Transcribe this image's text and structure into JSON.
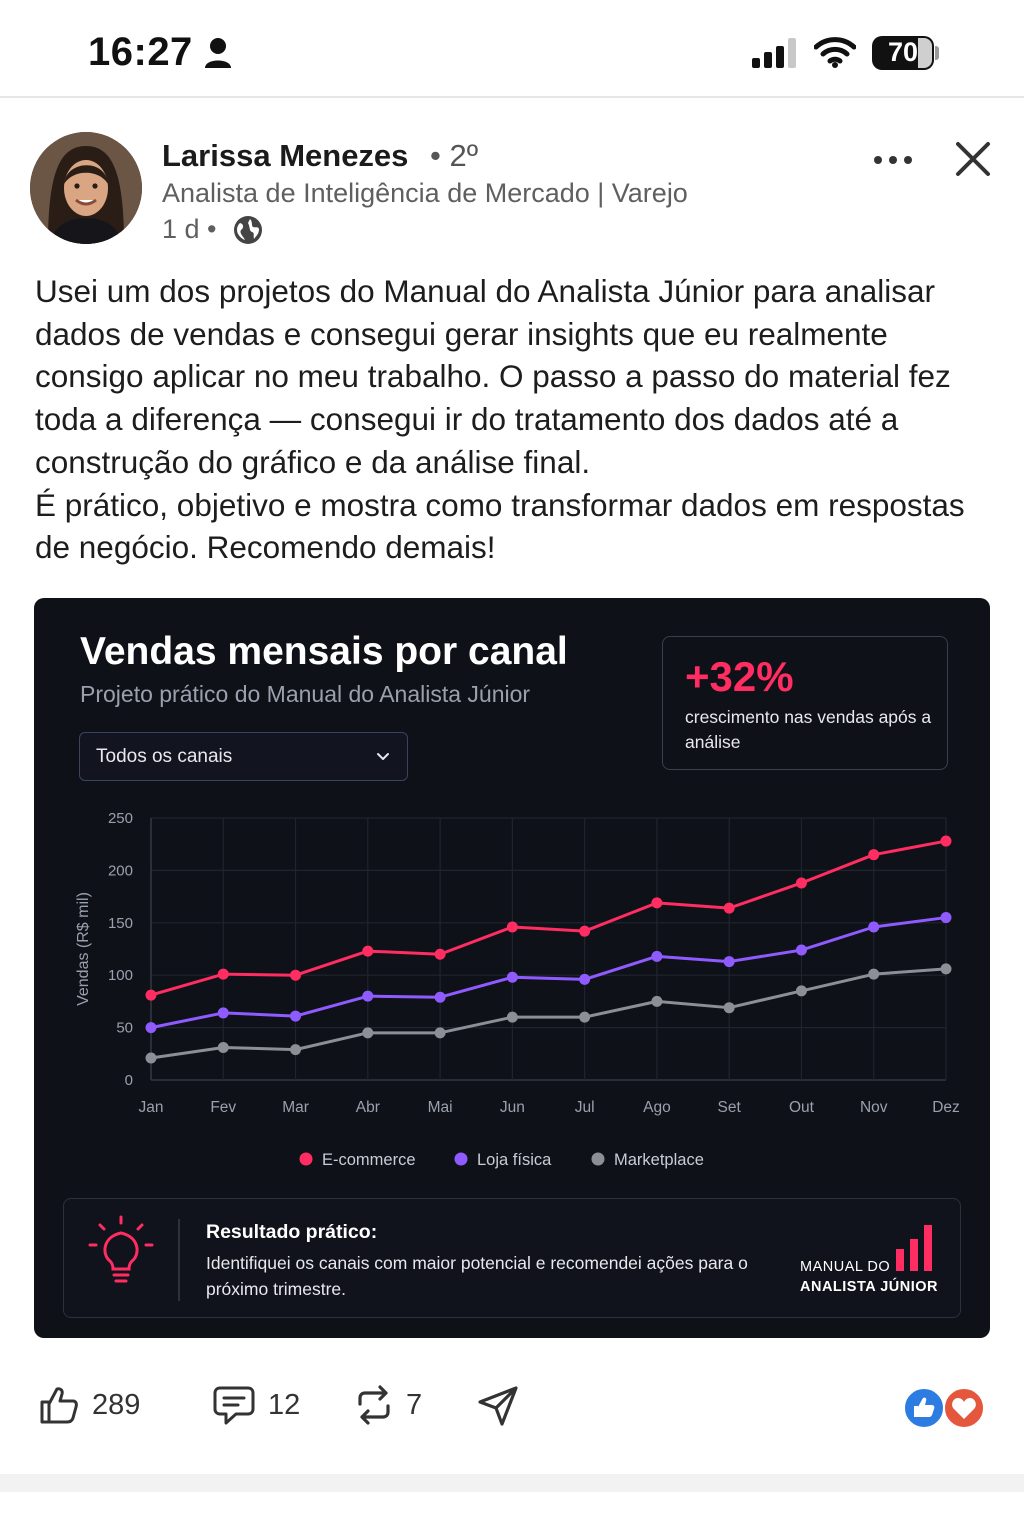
{
  "status_bar": {
    "time": "16:27",
    "battery": "70"
  },
  "post": {
    "author_name": "Larissa Menezes",
    "degree": "• 2º",
    "headline": "Analista de Inteligência de Mercado | Varejo",
    "time": "1 d •",
    "text": "Usei um dos projetos do Manual do Analista Júnior para analisar dados de vendas e consegui gerar insights que eu realmente consigo aplicar no meu trabalho. O passo a passo do material fez toda a diferença — consegui ir do tratamento dos dados até a construção do gráfico e da análise final.\nÉ prático, objetivo e mostra como transformar dados em respostas de negócio. Recomendo demais!"
  },
  "card": {
    "title": "Vendas mensais por canal",
    "subtitle": "Projeto prático do Manual do Analista Júnior",
    "select_value": "Todos os canais",
    "kpi_value": "+32%",
    "kpi_description": "crescimento nas vendas após a análise",
    "result_title": "Resultado prático:",
    "result_text": "Identifiquei os canais com maior potencial e recomendei ações para o próximo trimestre.",
    "brand_line1": "MANUAL DO",
    "brand_line2": "ANALISTA JÚNIOR",
    "brand_color": "#ff2d61"
  },
  "chart_data": {
    "type": "line",
    "title": "Vendas mensais por canal",
    "subtitle": "Projeto prático do Manual do Analista Júnior",
    "ylabel": "Vendas (R$ mil)",
    "xlabel": "",
    "x": [
      "Jan",
      "Fev",
      "Mar",
      "Abr",
      "Mai",
      "Jun",
      "Jul",
      "Ago",
      "Set",
      "Out",
      "Nov",
      "Dez"
    ],
    "ylim": [
      0,
      250
    ],
    "yticks": [
      0,
      50,
      100,
      150,
      200,
      250
    ],
    "grid": true,
    "legend_position": "bottom",
    "series": [
      {
        "name": "E-commerce",
        "color": "#ff2d61",
        "values": [
          81,
          101,
          100,
          123,
          120,
          146,
          142,
          169,
          164,
          188,
          215,
          228
        ]
      },
      {
        "name": "Loja física",
        "color": "#8f5bff",
        "values": [
          50,
          64,
          61,
          80,
          79,
          98,
          96,
          118,
          113,
          124,
          146,
          155
        ]
      },
      {
        "name": "Marketplace",
        "color": "#8c8f96",
        "values": [
          21,
          31,
          29,
          45,
          45,
          60,
          60,
          75,
          69,
          85,
          101,
          106
        ]
      }
    ]
  },
  "actions": {
    "likes": "289",
    "comments": "12",
    "reposts": "7"
  },
  "icons": {
    "like": "thumbs-up-icon",
    "comment": "comment-icon",
    "repost": "repost-icon",
    "send": "send-icon",
    "globe": "globe-icon"
  }
}
